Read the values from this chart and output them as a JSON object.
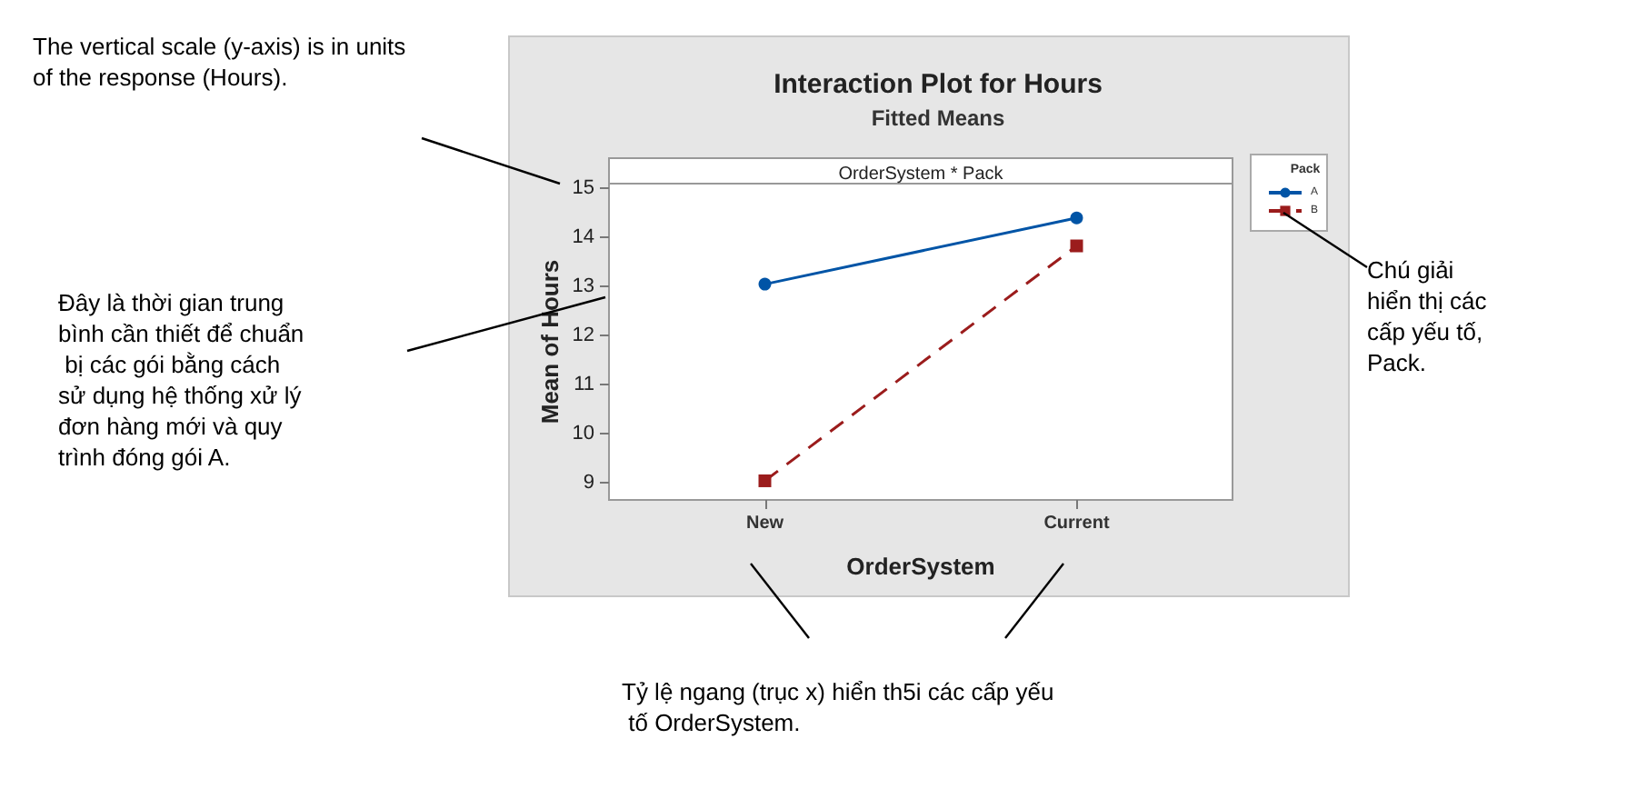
{
  "chart_data": {
    "type": "line",
    "title": "Interaction Plot for Hours",
    "subtitle": "Fitted Means",
    "xlabel": "OrderSystem",
    "ylabel": "Mean of Hours",
    "legend_title": "Pack",
    "categories": [
      "New",
      "Current"
    ],
    "series": [
      {
        "name": "A",
        "color": "#0054a6",
        "values": [
          13.05,
          14.4
        ],
        "marker": "circle",
        "line_style": "solid"
      },
      {
        "name": "B",
        "color": "#9b1c1c",
        "values": [
          9.04,
          13.83
        ],
        "marker": "square",
        "line_style": "dashed"
      }
    ],
    "ylim": [
      8.65,
      15.1
    ],
    "yticks": [
      9,
      10,
      11,
      12,
      13,
      14,
      15
    ],
    "grid": false,
    "legend": "right",
    "annotations": [
      "OrderSystem * Pack",
      "The vertical scale (y-axis) is in units of the response (Hours).",
      "Đây là thời gian trung bình cần thiết để chuẩn bị các gói bằng cách sử dụng hệ thống xử lý đơn hàng mới và quy trình đóng gói A.",
      "Chú giải hiển thị các cấp yếu tố, Pack.",
      "Tỷ lệ ngang (trục x) hiển th5i các cấp yếu tố OrderSystem."
    ]
  }
}
